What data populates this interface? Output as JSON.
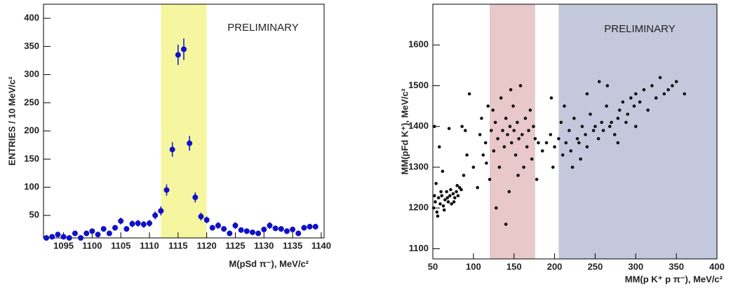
{
  "chart_data": [
    {
      "type": "errorbar",
      "annotation": "PRELIMINARY",
      "x_label": "M(pSd π⁻), MeV/c²",
      "y_label": "ENTRIES / 10 MeV/c²",
      "color": "#1010c8",
      "bands": [
        {
          "from": 1112,
          "to": 1120,
          "color": "#f6f6a0"
        }
      ],
      "x": [
        1092,
        1093,
        1094,
        1095,
        1096,
        1097,
        1098,
        1099,
        1100,
        1101,
        1102,
        1103,
        1104,
        1105,
        1106,
        1107,
        1108,
        1109,
        1110,
        1111,
        1112,
        1113,
        1114,
        1115,
        1116,
        1117,
        1118,
        1119,
        1120,
        1121,
        1122,
        1123,
        1124,
        1125,
        1126,
        1127,
        1128,
        1129,
        1130,
        1131,
        1132,
        1133,
        1134,
        1135,
        1136,
        1137,
        1138,
        1139
      ],
      "values": [
        10,
        12,
        16,
        12,
        10,
        18,
        10,
        18,
        22,
        16,
        26,
        18,
        28,
        40,
        26,
        35,
        36,
        34,
        36,
        50,
        58,
        95,
        167,
        335,
        345,
        178,
        82,
        48,
        42,
        28,
        32,
        26,
        18,
        32,
        24,
        22,
        20,
        18,
        25,
        32,
        27,
        26,
        22,
        25,
        18,
        28,
        30,
        30
      ],
      "errors": [
        3,
        3,
        4,
        3,
        3,
        4,
        3,
        4,
        5,
        4,
        5,
        4,
        5,
        6,
        5,
        6,
        6,
        6,
        6,
        7,
        8,
        10,
        13,
        18,
        19,
        13,
        9,
        7,
        6,
        5,
        6,
        5,
        4,
        6,
        5,
        5,
        4,
        4,
        5,
        6,
        5,
        5,
        5,
        5,
        4,
        5,
        5,
        5
      ],
      "xlim": [
        1091.5,
        1140.5
      ],
      "ylim": [
        10,
        425
      ],
      "xticks": [
        1095,
        1100,
        1105,
        1110,
        1115,
        1120,
        1125,
        1130,
        1135,
        1140
      ],
      "yticks": [
        50,
        100,
        150,
        200,
        250,
        300,
        350,
        400
      ]
    },
    {
      "type": "scatter",
      "annotation": "PRELIMINARY",
      "x_label": "MM(p K⁺ p π⁻), MeV/c²",
      "y_label": "MM(pFd K⁺), MeV/c²",
      "color": "#111111",
      "bands": [
        {
          "from": 120,
          "to": 176,
          "color": "#e8c8c8"
        },
        {
          "from": 205,
          "to": 400,
          "color": "#c4c8dc"
        }
      ],
      "x": [
        51,
        53,
        55,
        57,
        59,
        61,
        63,
        65,
        67,
        69,
        71,
        73,
        75,
        77,
        79,
        81,
        83,
        85,
        52,
        56,
        60,
        64,
        68,
        72,
        76,
        80,
        54,
        58,
        62,
        52,
        70,
        86,
        90,
        95,
        88,
        92,
        100,
        105,
        108,
        110,
        112,
        115,
        118,
        120,
        122,
        125,
        127,
        130,
        132,
        134,
        136,
        138,
        140,
        142,
        144,
        145,
        147,
        149,
        150,
        152,
        154,
        156,
        158,
        160,
        162,
        164,
        166,
        168,
        170,
        172,
        174,
        176,
        178,
        180,
        128,
        140,
        155,
        116,
        146,
        124,
        185,
        190,
        195,
        198,
        200,
        205,
        208,
        210,
        214,
        218,
        220,
        224,
        228,
        230,
        234,
        238,
        240,
        244,
        248,
        250,
        254,
        258,
        260,
        264,
        268,
        270,
        274,
        278,
        280,
        284,
        288,
        290,
        294,
        298,
        300,
        305,
        310,
        315,
        320,
        325,
        330,
        335,
        340,
        345,
        350,
        360,
        255,
        265,
        240,
        222,
        196,
        212,
        232,
        300,
        278
      ],
      "values": [
        1200,
        1215,
        1190,
        1225,
        1210,
        1230,
        1205,
        1220,
        1240,
        1215,
        1230,
        1210,
        1235,
        1225,
        1240,
        1230,
        1250,
        1245,
        1230,
        1180,
        1240,
        1195,
        1225,
        1245,
        1215,
        1255,
        1260,
        1350,
        1290,
        1400,
        1395,
        1400,
        1390,
        1480,
        1280,
        1330,
        1300,
        1250,
        1380,
        1420,
        1330,
        1360,
        1450,
        1270,
        1390,
        1340,
        1410,
        1370,
        1300,
        1470,
        1390,
        1350,
        1420,
        1380,
        1240,
        1400,
        1360,
        1450,
        1390,
        1330,
        1410,
        1370,
        1500,
        1380,
        1300,
        1420,
        1350,
        1390,
        1440,
        1320,
        1400,
        1370,
        1270,
        1360,
        1200,
        1160,
        1280,
        1310,
        1490,
        1440,
        1340,
        1360,
        1380,
        1300,
        1350,
        1370,
        1410,
        1330,
        1360,
        1390,
        1340,
        1420,
        1370,
        1360,
        1400,
        1380,
        1350,
        1430,
        1390,
        1400,
        1370,
        1410,
        1390,
        1450,
        1400,
        1410,
        1380,
        1420,
        1440,
        1460,
        1410,
        1430,
        1470,
        1450,
        1480,
        1460,
        1490,
        1440,
        1500,
        1470,
        1520,
        1480,
        1490,
        1500,
        1510,
        1480,
        1510,
        1500,
        1480,
        1300,
        1470,
        1450,
        1320,
        1400,
        1360
      ],
      "xlim": [
        50,
        400
      ],
      "ylim": [
        1075,
        1700
      ],
      "xticks": [
        50,
        100,
        150,
        200,
        250,
        300,
        350,
        400
      ],
      "yticks": [
        1100,
        1200,
        1300,
        1400,
        1500,
        1600
      ]
    }
  ]
}
